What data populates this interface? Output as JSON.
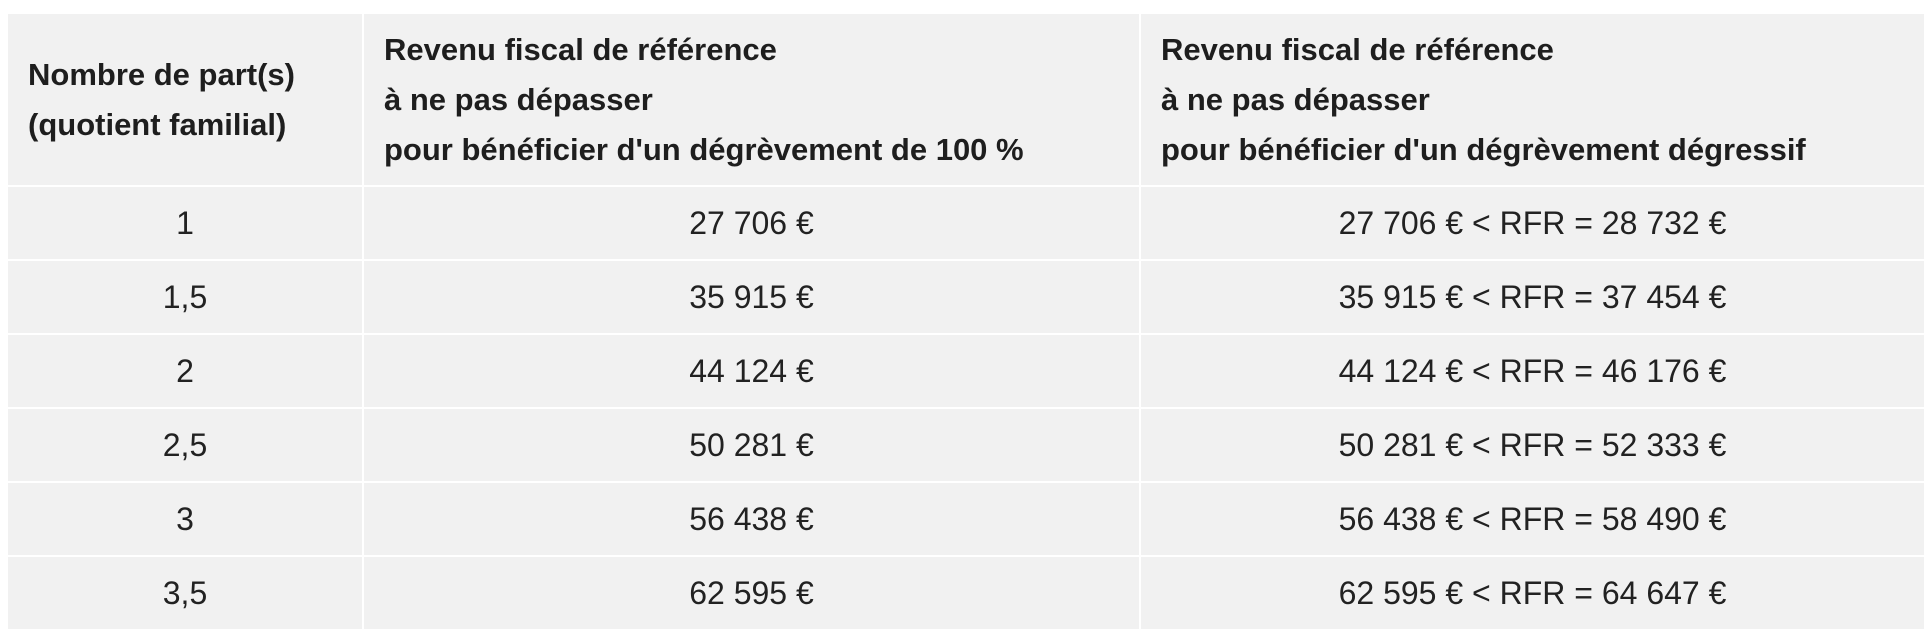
{
  "table": {
    "headers": {
      "parts": [
        "Nombre de part(s)",
        "(quotient familial)"
      ],
      "full_relief": [
        "Revenu fiscal de référence",
        "à ne pas dépasser",
        "pour bénéficier d'un dégrèvement de 100 %"
      ],
      "degressive_relief": [
        "Revenu fiscal de référence",
        "à ne pas dépasser",
        "pour bénéficier d'un dégrèvement dégressif"
      ]
    },
    "rows": [
      {
        "parts": "1",
        "full": "27 706 €",
        "degressive": "27 706 € < RFR = 28 732 €"
      },
      {
        "parts": "1,5",
        "full": "35 915 €",
        "degressive": "35 915 € < RFR = 37 454 €"
      },
      {
        "parts": "2",
        "full": "44 124 €",
        "degressive": "44 124 € < RFR = 46 176 €"
      },
      {
        "parts": "2,5",
        "full": "50 281 €",
        "degressive": "50 281 € < RFR = 52 333 €"
      },
      {
        "parts": "3",
        "full": "56 438 €",
        "degressive": "56 438 € < RFR = 58 490 €"
      },
      {
        "parts": "3,5",
        "full": "62 595 €",
        "degressive": "62 595 € < RFR = 64 647 €"
      }
    ]
  }
}
